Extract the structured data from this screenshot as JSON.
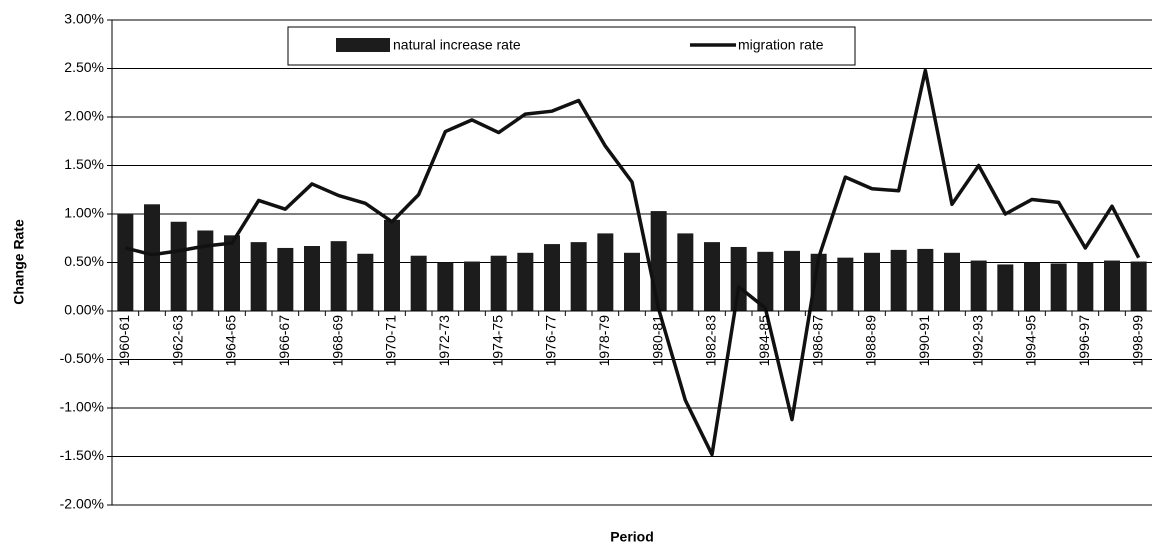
{
  "chart_data": {
    "type": "bar-line",
    "y_label": "Change Rate",
    "x_label": "Period",
    "legend": "top",
    "grid": true,
    "categories": [
      "1960-61",
      null,
      "1962-63",
      null,
      "1964-65",
      null,
      "1966-67",
      null,
      "1968-69",
      null,
      "1970-71",
      null,
      "1972-73",
      null,
      "1974-75",
      null,
      "1976-77",
      null,
      "1978-79",
      null,
      "1980-81",
      null,
      "1982-83",
      null,
      "1984-85",
      null,
      "1986-87",
      null,
      "1988-89",
      null,
      "1990-91",
      null,
      "1992-93",
      null,
      "1994-95",
      null,
      "1996-97",
      null,
      "1998-99"
    ],
    "series": [
      {
        "name": "natural increase rate",
        "type": "bar",
        "color": "#1c1c1c",
        "values": [
          1.0,
          1.1,
          0.92,
          0.83,
          0.78,
          0.71,
          0.65,
          0.67,
          0.72,
          0.59,
          0.94,
          0.57,
          0.5,
          0.51,
          0.57,
          0.6,
          0.69,
          0.71,
          0.8,
          0.6,
          1.03,
          0.8,
          0.71,
          0.66,
          0.61,
          0.62,
          0.59,
          0.55,
          0.6,
          0.63,
          0.64,
          0.6,
          0.52,
          0.48,
          0.5,
          0.49,
          0.5,
          0.52,
          0.51
        ]
      },
      {
        "name": "migration rate",
        "type": "line",
        "color": "#111111",
        "values": [
          0.65,
          0.58,
          0.62,
          0.67,
          0.7,
          1.14,
          1.05,
          1.31,
          1.19,
          1.11,
          0.92,
          1.2,
          1.85,
          1.97,
          1.84,
          2.03,
          2.06,
          2.17,
          1.7,
          1.33,
          0.02,
          -0.92,
          -1.48,
          0.25,
          0.03,
          -1.12,
          0.55,
          1.38,
          1.26,
          1.24,
          2.48,
          1.1,
          1.5,
          1.0,
          1.15,
          1.12,
          0.65,
          1.08,
          0.55
        ]
      }
    ],
    "ylim": [
      -2,
      3
    ],
    "yticks": [
      {
        "value": -2,
        "label": "-2.00%"
      },
      {
        "value": -1.5,
        "label": "-1.50%"
      },
      {
        "value": -1,
        "label": "-1.00%"
      },
      {
        "value": -0.5,
        "label": "-0.50%"
      },
      {
        "value": 0,
        "label": "0.00%"
      },
      {
        "value": 0.5,
        "label": "0.50%"
      },
      {
        "value": 1,
        "label": "1.00%"
      },
      {
        "value": 1.5,
        "label": "1.50%"
      },
      {
        "value": 2,
        "label": "2.00%"
      },
      {
        "value": 2.5,
        "label": "2.50%"
      },
      {
        "value": 3,
        "label": "3.00%"
      }
    ]
  }
}
